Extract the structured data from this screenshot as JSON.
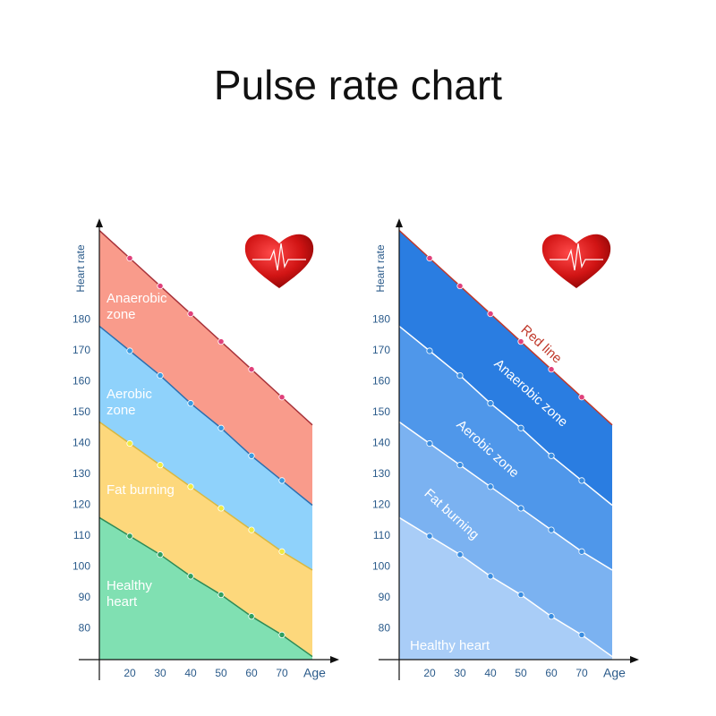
{
  "title": "Pulse rate chart",
  "chart_data": [
    {
      "type": "area",
      "y_label": "Heart rate",
      "x_label": "Age",
      "x": [
        10,
        20,
        30,
        40,
        50,
        60,
        70,
        80
      ],
      "xlim": [
        10,
        80
      ],
      "ylim": [
        70,
        210
      ],
      "xticks": [
        20,
        30,
        40,
        50,
        60,
        70
      ],
      "yticks": [
        80,
        90,
        100,
        110,
        120,
        130,
        140,
        150,
        160,
        170,
        180
      ],
      "series": [
        {
          "name": "Anaerobic zone",
          "color": "#f99b8b",
          "line_color": "#a8323a",
          "marker_color": "#e0407a",
          "values": [
            209,
            200,
            191,
            182,
            173,
            164,
            155,
            146
          ]
        },
        {
          "name": "Aerobic zone",
          "color": "#8fd2fb",
          "line_color": "#2c6fb0",
          "marker_color": "#3a9be0",
          "values": [
            178,
            170,
            162,
            153,
            145,
            136,
            128,
            120
          ]
        },
        {
          "name": "Fat burning",
          "color": "#fdd87c",
          "line_color": "#d8b840",
          "marker_color": "#f0ea40",
          "values": [
            147,
            140,
            133,
            126,
            119,
            112,
            105,
            99
          ]
        },
        {
          "name": "Healthy heart",
          "color": "#80e0b2",
          "line_color": "#2e8b57",
          "marker_color": "#30a060",
          "values": [
            116,
            110,
            104,
            97,
            91,
            84,
            78,
            71
          ]
        }
      ]
    },
    {
      "type": "area",
      "y_label": "Heart rate",
      "x_label": "Age",
      "annotation": "Red line",
      "x": [
        10,
        20,
        30,
        40,
        50,
        60,
        70,
        80
      ],
      "xlim": [
        10,
        80
      ],
      "ylim": [
        70,
        210
      ],
      "xticks": [
        20,
        30,
        40,
        50,
        60,
        70
      ],
      "yticks": [
        80,
        90,
        100,
        110,
        120,
        130,
        140,
        150,
        160,
        170,
        180
      ],
      "series": [
        {
          "name": "Anaerobic zone",
          "color": "#2a7de1",
          "line_color": "#c0392b",
          "marker_color": "#e0407a",
          "values": [
            209,
            200,
            191,
            182,
            173,
            164,
            155,
            146
          ]
        },
        {
          "name": "Aerobic zone",
          "color": "#4f97ea",
          "line_color": "#ffffff",
          "marker_color": "#3a8de0",
          "values": [
            178,
            170,
            162,
            153,
            145,
            136,
            128,
            120
          ]
        },
        {
          "name": "Fat burning",
          "color": "#7bb2f1",
          "line_color": "#ffffff",
          "marker_color": "#3a8de0",
          "values": [
            147,
            140,
            133,
            126,
            119,
            112,
            105,
            99
          ]
        },
        {
          "name": "Healthy heart",
          "color": "#a9cdf7",
          "line_color": "#ffffff",
          "marker_color": "#3a8de0",
          "values": [
            116,
            110,
            104,
            97,
            91,
            84,
            78,
            71
          ]
        }
      ]
    }
  ]
}
